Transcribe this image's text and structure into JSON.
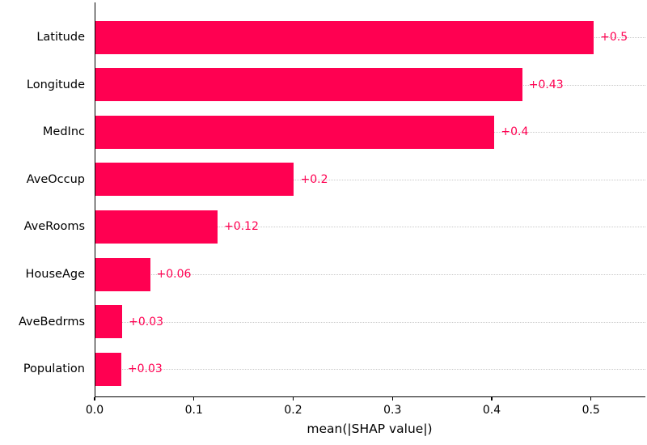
{
  "chart_data": {
    "type": "bar",
    "orientation": "horizontal",
    "title": "",
    "xlabel": "mean(|SHAP value|)",
    "ylabel": "",
    "categories": [
      "Latitude",
      "Longitude",
      "MedInc",
      "AveOccup",
      "AveRooms",
      "HouseAge",
      "AveBedrms",
      "Population"
    ],
    "values": [
      0.502,
      0.43,
      0.402,
      0.2,
      0.123,
      0.055,
      0.027,
      0.026
    ],
    "value_labels": [
      "+0.5",
      "+0.43",
      "+0.4",
      "+0.2",
      "+0.12",
      "+0.06",
      "+0.03",
      "+0.03"
    ],
    "xticks": [
      0.0,
      0.1,
      0.2,
      0.3,
      0.4,
      0.5
    ],
    "xtick_labels": [
      "0.0",
      "0.1",
      "0.2",
      "0.3",
      "0.4",
      "0.5"
    ],
    "xlim": [
      0,
      0.554
    ],
    "grid": "dotted horizontal line at each bar row center",
    "legend": "none",
    "colors": {
      "bar": "#ff0051",
      "value_label": "#ff0051",
      "gridline": "#c9c9c9",
      "axis": "#000000",
      "background": "#ffffff",
      "text": "#000000"
    }
  }
}
